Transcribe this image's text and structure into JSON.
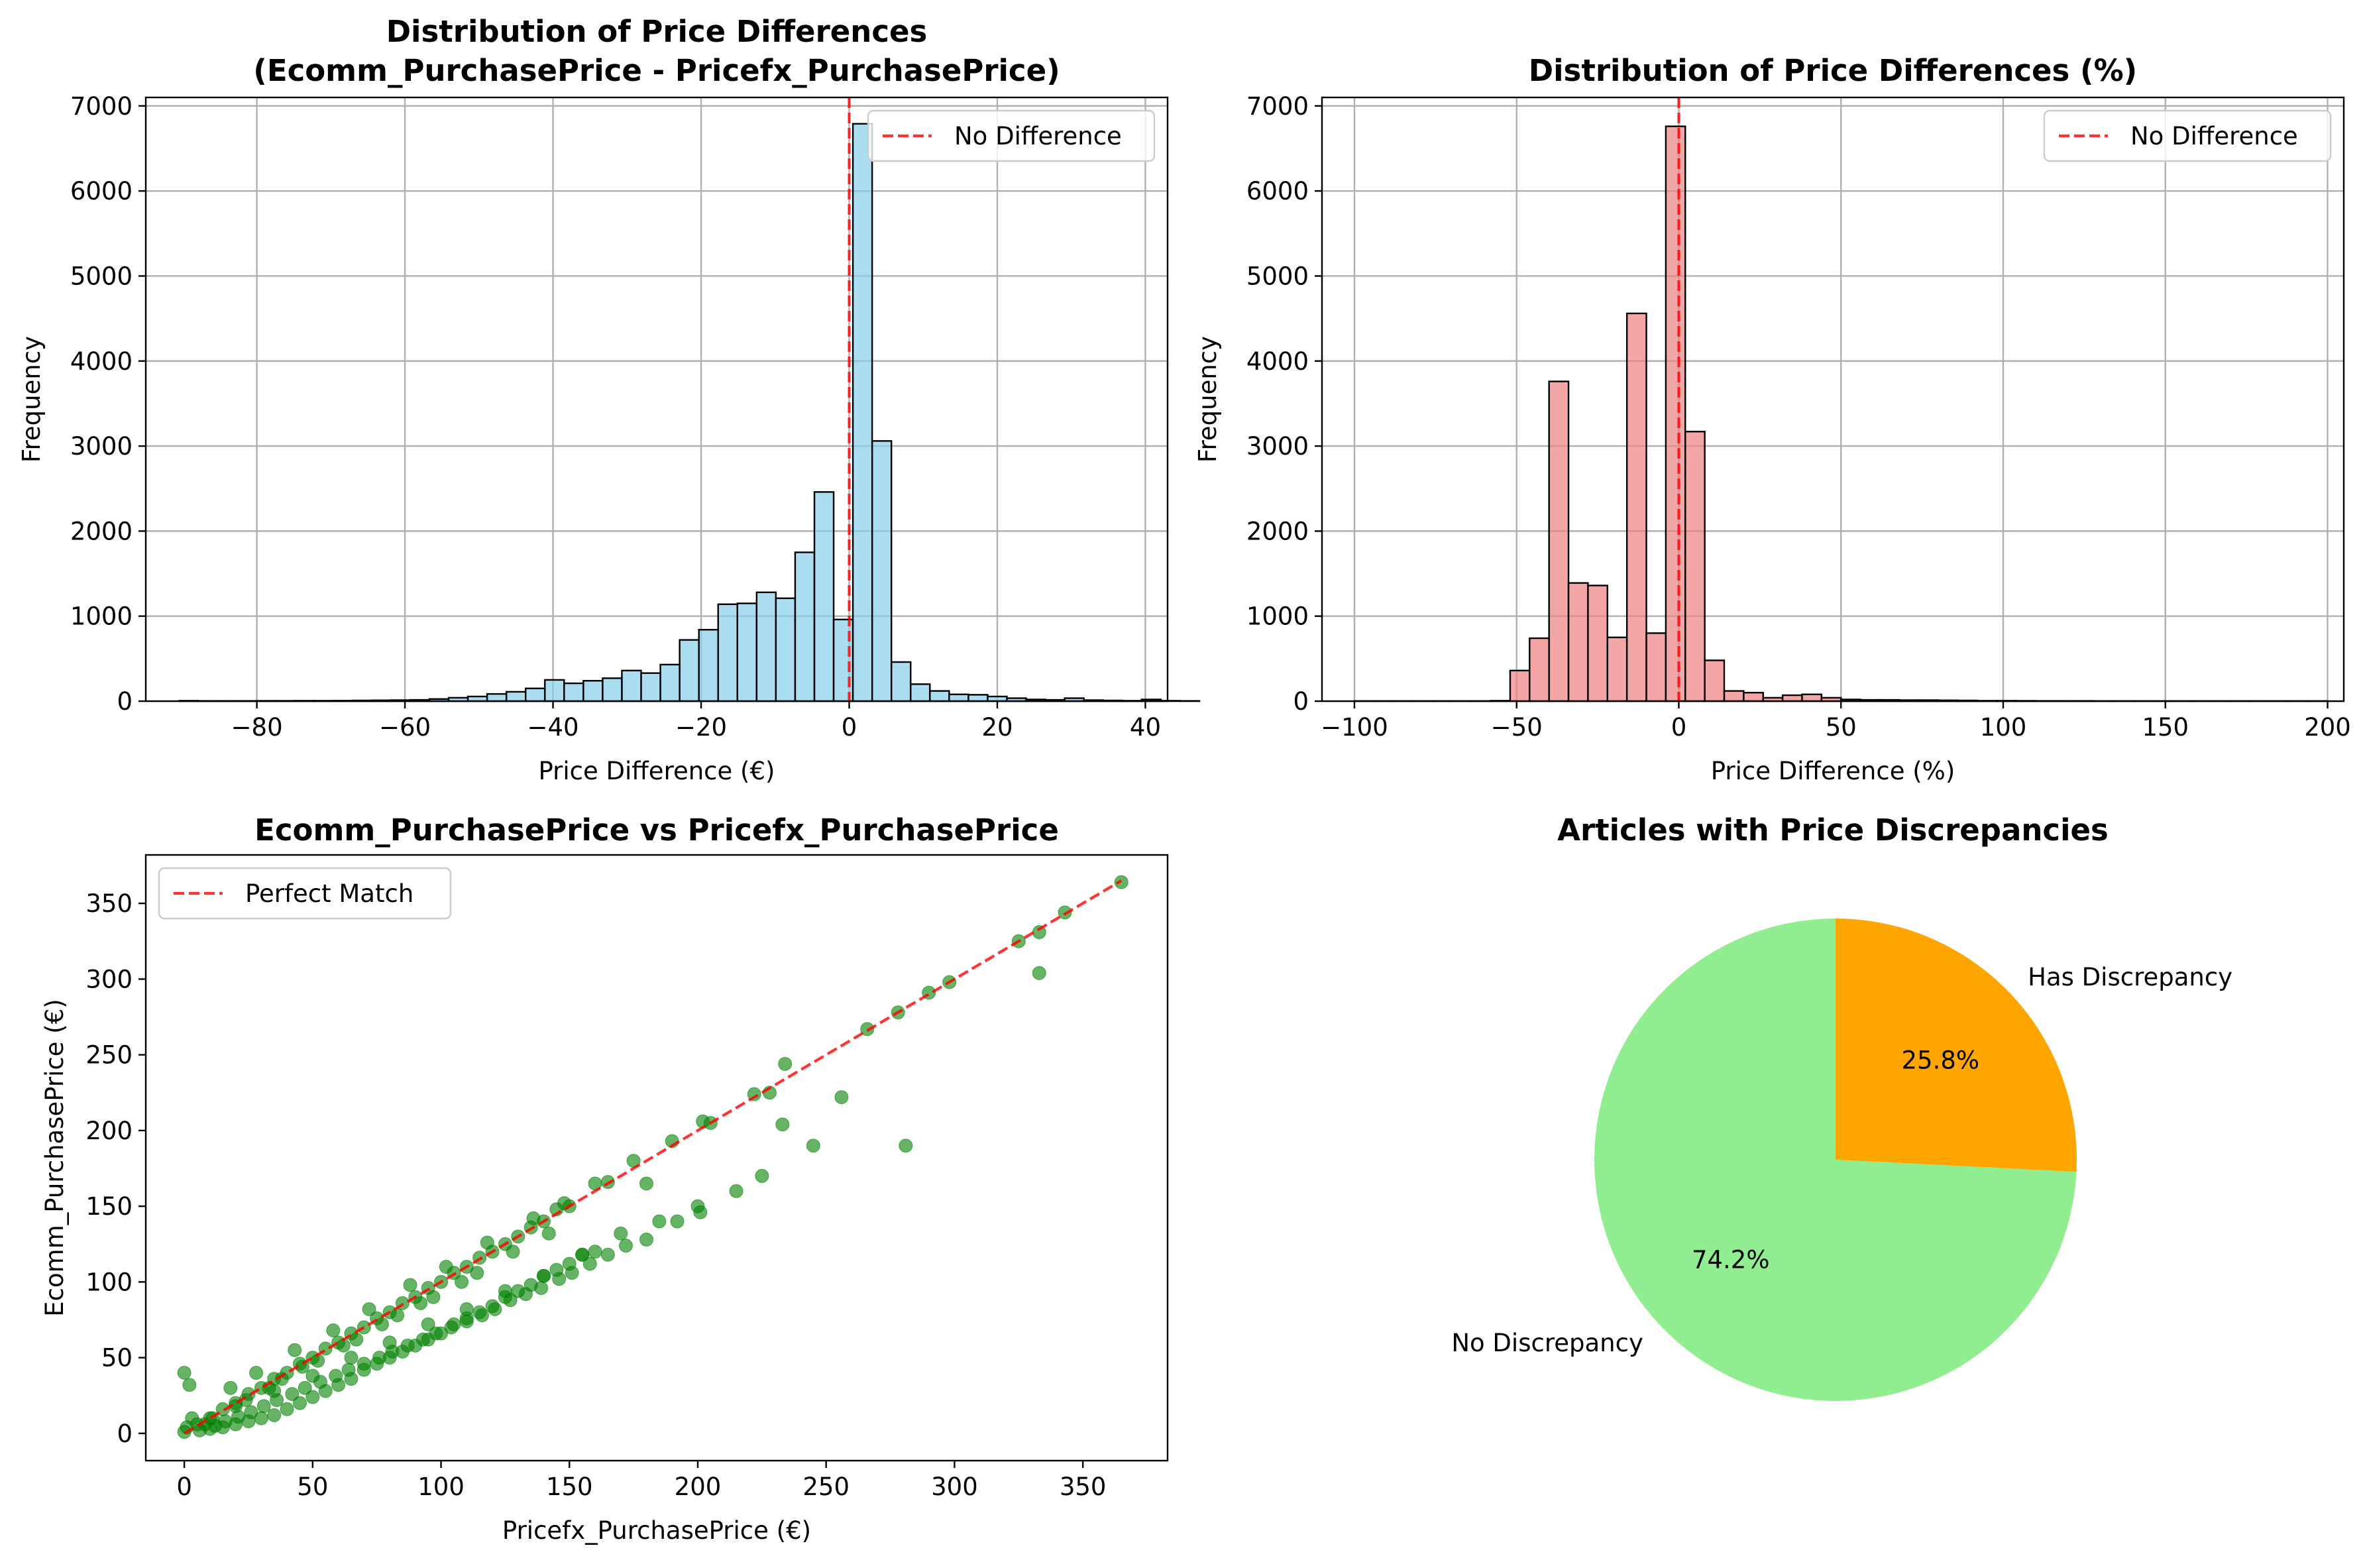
{
  "colors": {
    "hist_abs": "#87CEEB",
    "hist_pct": "#F08080",
    "scatter": "#008000",
    "reference_line": "#FF0000",
    "pie_no_discrepancy": "#90EE90",
    "pie_has_discrepancy": "#FFA500"
  },
  "chart_data": [
    {
      "type": "bar",
      "subtype": "histogram",
      "title": "Distribution of Price Differences\n(Ecomm_PurchasePrice - Pricefx_PurchasePrice)",
      "title_lines": [
        "Distribution of Price Differences",
        "(Ecomm_PurchasePrice - Pricefx_PurchasePrice)"
      ],
      "xlabel": "Price Difference (€)",
      "ylabel": "Frequency",
      "xlim": [
        -95,
        43
      ],
      "ylim": [
        0,
        7100
      ],
      "xticks": [
        -80,
        -60,
        -40,
        -20,
        0,
        20,
        40
      ],
      "xtick_labels": [
        "−80",
        "−60",
        "−40",
        "−20",
        "0",
        "20",
        "40"
      ],
      "yticks": [
        0,
        1000,
        2000,
        3000,
        4000,
        5000,
        6000,
        7000
      ],
      "ytick_labels": [
        "0",
        "1000",
        "2000",
        "3000",
        "4000",
        "5000",
        "6000",
        "7000"
      ],
      "grid": true,
      "bins": {
        "start": -90.5,
        "width": 2.6,
        "counts": [
          5,
          3,
          3,
          3,
          4,
          4,
          5,
          5,
          6,
          8,
          10,
          12,
          15,
          25,
          40,
          55,
          85,
          110,
          150,
          250,
          210,
          240,
          270,
          360,
          330,
          430,
          720,
          840,
          1140,
          1150,
          1280,
          1210,
          1750,
          2460,
          960,
          6790,
          3060,
          460,
          200,
          120,
          80,
          75,
          55,
          35,
          20,
          15,
          35,
          12,
          8,
          5,
          20,
          5,
          3
        ]
      },
      "vline": {
        "x": 0
      },
      "legend": {
        "entries": [
          "No Difference"
        ],
        "position": "upper right"
      }
    },
    {
      "type": "bar",
      "subtype": "histogram",
      "title": "Distribution of Price Differences (%)",
      "xlabel": "Price Difference (%)",
      "ylabel": "Frequency",
      "xlim": [
        -110,
        205
      ],
      "ylim": [
        0,
        7100
      ],
      "xticks": [
        -100,
        -50,
        0,
        50,
        100,
        150,
        200
      ],
      "xtick_labels": [
        "−100",
        "−50",
        "0",
        "50",
        "100",
        "150",
        "200"
      ],
      "yticks": [
        0,
        1000,
        2000,
        3000,
        4000,
        5000,
        6000,
        7000
      ],
      "ytick_labels": [
        "0",
        "1000",
        "2000",
        "3000",
        "4000",
        "5000",
        "6000",
        "7000"
      ],
      "grid": true,
      "bins": {
        "start": -100,
        "width": 6,
        "counts": [
          2,
          2,
          2,
          2,
          2,
          2,
          2,
          5,
          360,
          740,
          3760,
          1390,
          1360,
          750,
          4560,
          800,
          6760,
          3170,
          480,
          120,
          100,
          40,
          70,
          80,
          40,
          20,
          15,
          15,
          12,
          12,
          10,
          8,
          5,
          5,
          4,
          3,
          3,
          3,
          2,
          2,
          2,
          2,
          2,
          2,
          2,
          2,
          2,
          2,
          2,
          2
        ]
      },
      "vline": {
        "x": 0
      },
      "legend": {
        "entries": [
          "No Difference"
        ],
        "position": "upper right"
      }
    },
    {
      "type": "scatter",
      "title": "Ecomm_PurchasePrice vs Pricefx_PurchasePrice",
      "xlabel": "Pricefx_PurchasePrice (€)",
      "ylabel": "Ecomm_PurchasePrice (€)",
      "xlim": [
        -15,
        383
      ],
      "ylim": [
        -18,
        382
      ],
      "xticks": [
        0,
        50,
        100,
        150,
        200,
        250,
        300,
        350
      ],
      "yticks": [
        0,
        50,
        100,
        150,
        200,
        250,
        300,
        350
      ],
      "grid": false,
      "series": [
        {
          "x": [
            365,
            343,
            333,
            325,
            298,
            290,
            278,
            266,
            234,
            222,
            202,
            333,
            281,
            256,
            233,
            228,
            205,
            190,
            175,
            160,
            150,
            145,
            140,
            135,
            130,
            125,
            120,
            115,
            110,
            105,
            100,
            95,
            90,
            85,
            80,
            75,
            70,
            65,
            60,
            55,
            50,
            45,
            40,
            35,
            30,
            25,
            20,
            15,
            10,
            5,
            0,
            0,
            2,
            8,
            20,
            35,
            50,
            65,
            80,
            95,
            110,
            125,
            140,
            155,
            170,
            185,
            200,
            215,
            225,
            245,
            201,
            192,
            180,
            172,
            165,
            158,
            151,
            146,
            139,
            133,
            127,
            121,
            116,
            110,
            104,
            98,
            93,
            87,
            81,
            76,
            70,
            64,
            59,
            53,
            47,
            42,
            36,
            31,
            26,
            21,
            16,
            12,
            6,
            160,
            155,
            150,
            145,
            140,
            135,
            130,
            125,
            120,
            115,
            110,
            105,
            100,
            95,
            90,
            85,
            80,
            75,
            70,
            65,
            60,
            55,
            50,
            45,
            40,
            35,
            30,
            25,
            20,
            15,
            10,
            165,
            180,
            148,
            136,
            118,
            102,
            88,
            72,
            58,
            43,
            28,
            18,
            142,
            128,
            114,
            97,
            83,
            67,
            52,
            38,
            24,
            11,
            108,
            92,
            77,
            62,
            46,
            33,
            3,
            1
          ],
          "y": [
            364,
            344,
            331,
            325,
            298,
            291,
            278,
            267,
            244,
            224,
            206,
            304,
            190,
            222,
            204,
            225,
            205,
            193,
            180,
            165,
            150,
            148,
            140,
            136,
            130,
            125,
            120,
            116,
            110,
            106,
            100,
            96,
            90,
            86,
            80,
            76,
            70,
            66,
            60,
            56,
            50,
            46,
            40,
            36,
            30,
            26,
            20,
            16,
            10,
            6,
            1,
            40,
            32,
            6,
            18,
            28,
            38,
            50,
            60,
            72,
            82,
            94,
            104,
            118,
            132,
            140,
            150,
            160,
            170,
            190,
            146,
            140,
            128,
            124,
            118,
            112,
            106,
            102,
            96,
            92,
            88,
            82,
            78,
            74,
            70,
            66,
            62,
            58,
            54,
            50,
            46,
            42,
            38,
            34,
            30,
            26,
            22,
            18,
            14,
            11,
            8,
            5,
            2,
            120,
            118,
            112,
            108,
            104,
            98,
            94,
            90,
            84,
            80,
            76,
            72,
            66,
            62,
            58,
            54,
            50,
            46,
            42,
            36,
            32,
            28,
            24,
            20,
            16,
            12,
            10,
            8,
            6,
            4,
            3,
            166,
            165,
            152,
            142,
            126,
            110,
            98,
            82,
            68,
            55,
            40,
            30,
            132,
            120,
            106,
            90,
            78,
            62,
            48,
            36,
            22,
            10,
            100,
            86,
            72,
            58,
            44,
            30,
            10,
            4
          ]
        }
      ],
      "reference_line": {
        "from": [
          0,
          0
        ],
        "to": [
          365,
          365
        ]
      },
      "legend": {
        "entries": [
          "Perfect Match"
        ],
        "position": "upper left"
      }
    },
    {
      "type": "pie",
      "title": "Articles with Price Discrepancies",
      "slices": [
        {
          "label": "Has Discrepancy",
          "value": 25.8,
          "pct_label": "25.8%"
        },
        {
          "label": "No Discrepancy",
          "value": 74.2,
          "pct_label": "74.2%"
        }
      ],
      "start_angle": 90
    }
  ]
}
